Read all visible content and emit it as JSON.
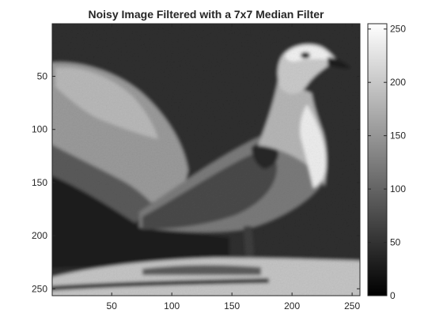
{
  "chart_data": {
    "type": "heatmap",
    "title": "Noisy Image Filtered with a 7x7 Median Filter",
    "colormap": "gray",
    "image_size": [
      256,
      256
    ],
    "x_ticks": [
      50,
      100,
      150,
      200,
      250
    ],
    "y_ticks": [
      50,
      100,
      150,
      200,
      250
    ],
    "xlim": [
      0.5,
      256.5
    ],
    "ylim": [
      0.5,
      256.5
    ],
    "y_direction": "reverse",
    "colorbar": {
      "location": "right",
      "limits": [
        0,
        255
      ],
      "ticks": [
        0,
        50,
        100,
        150,
        200,
        250
      ]
    },
    "image_content": {
      "background_level": 45,
      "rock_level": 170,
      "bird_body_level": 130,
      "bird_head_level": 205,
      "bird_belly_level": 235,
      "wing_level": 80,
      "ground_level": 200
    }
  }
}
